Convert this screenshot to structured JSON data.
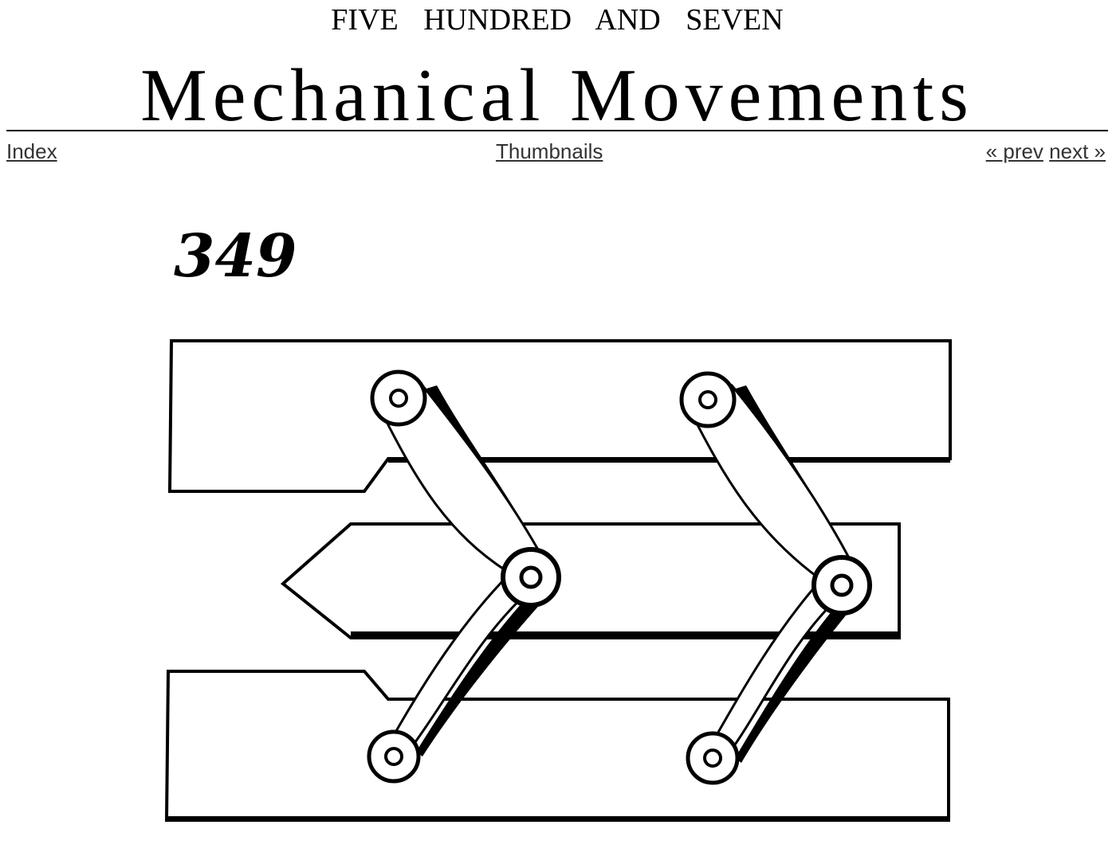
{
  "header": {
    "supertitle": "FIVE HUNDRED AND SEVEN",
    "title": "Mechanical Movements"
  },
  "nav": {
    "index_label": "Index",
    "thumbnails_label": "Thumbnails",
    "prev_label": "« prev",
    "next_label": "next »"
  },
  "figure": {
    "number": "349"
  }
}
